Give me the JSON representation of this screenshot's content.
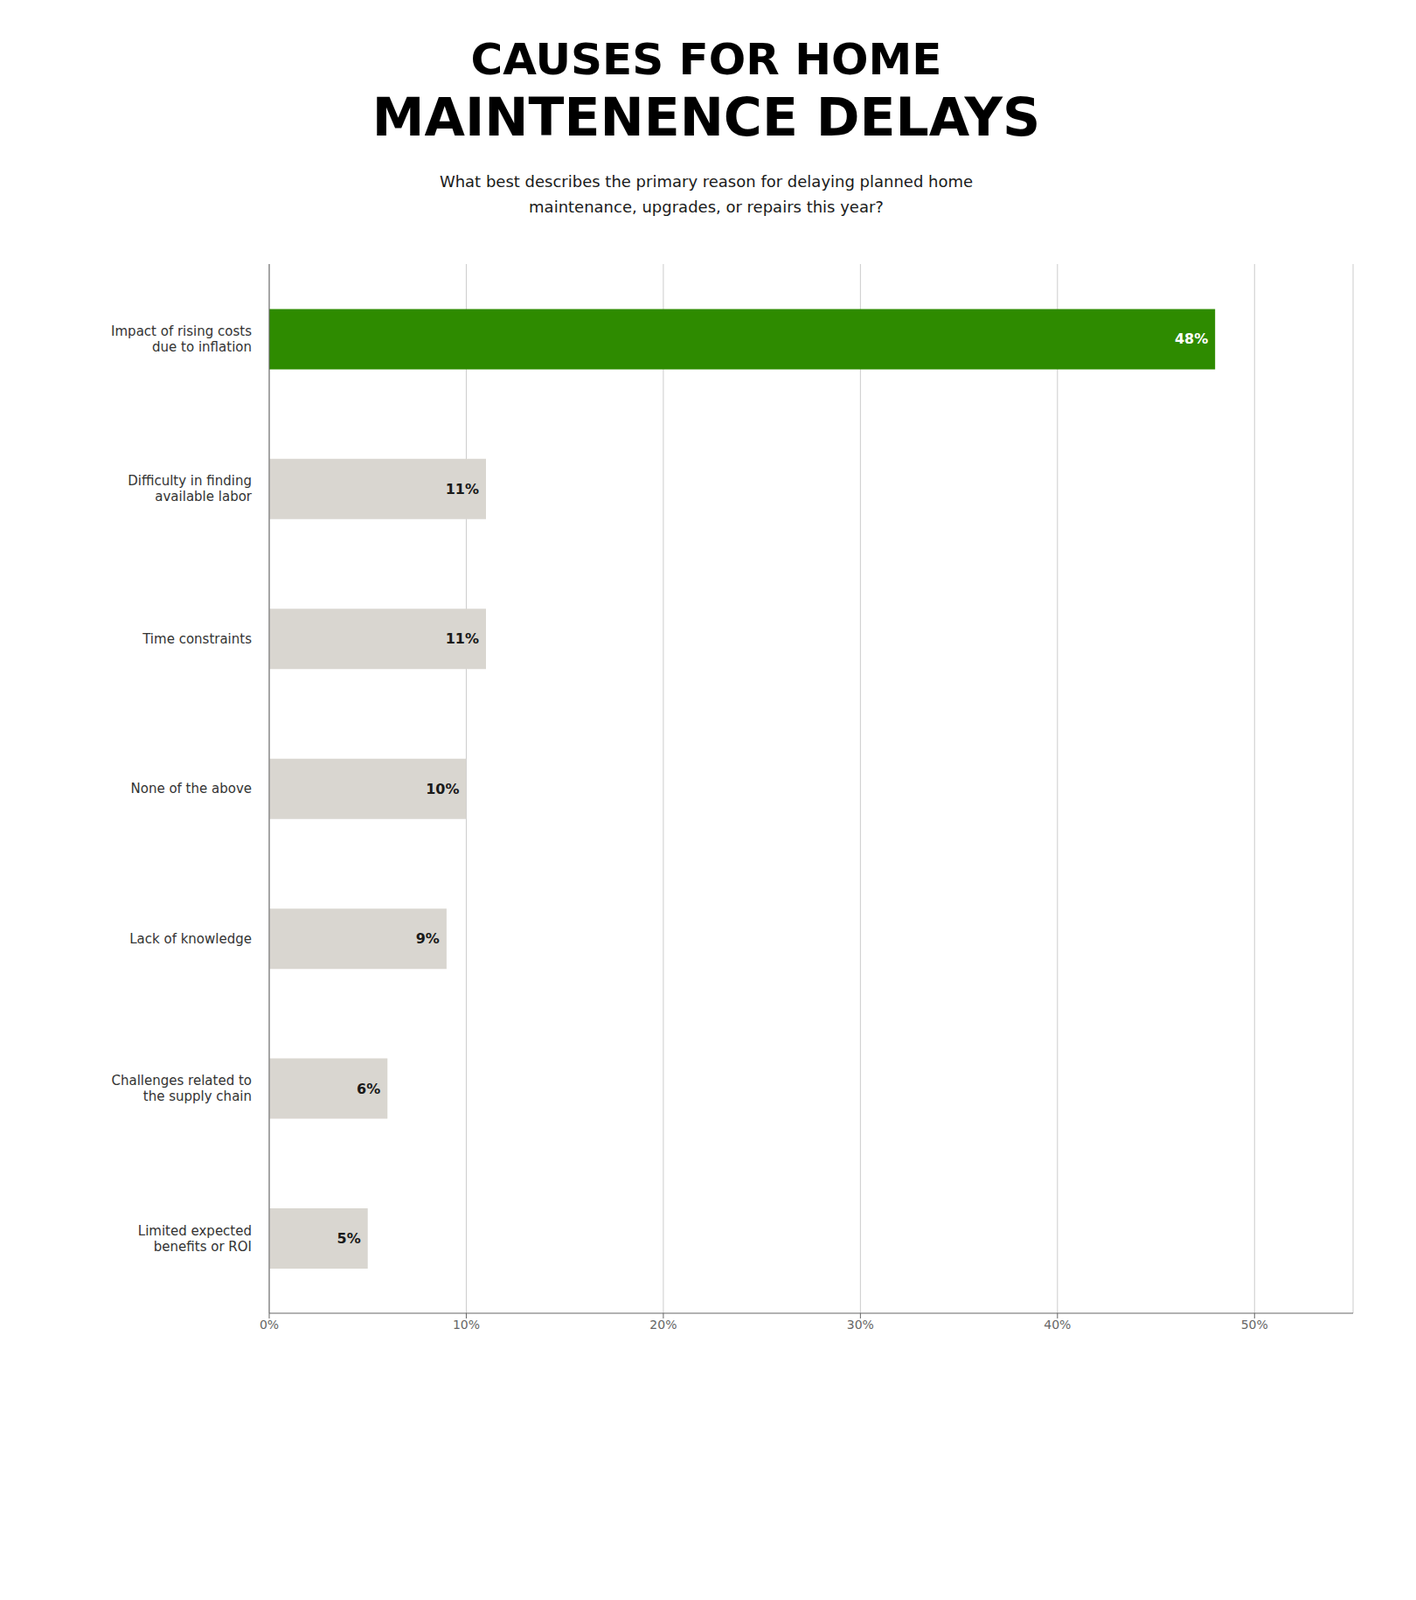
{
  "chart_data": {
    "type": "bar",
    "orientation": "horizontal",
    "title": "CAUSES FOR HOME\nMAINTENENCE DELAYS",
    "subtitle": "What best describes the primary reason for delaying planned home\nmaintenance, upgrades, or repairs this year?",
    "categories": [
      "Impact of rising costs\ndue to inflation",
      "Difficulty in finding\navailable labor",
      "Time constraints",
      "None of the above",
      "Lack of knowledge",
      "Challenges related to\nthe supply chain",
      "Limited expected\nbenefits or ROI"
    ],
    "values": [
      48,
      11,
      11,
      10,
      9,
      6,
      5
    ],
    "value_labels": [
      "48%",
      "11%",
      "11%",
      "10%",
      "9%",
      "6%",
      "5%"
    ],
    "colors": [
      "#2e8b00",
      "#d9d6d0",
      "#d9d6d0",
      "#d9d6d0",
      "#d9d6d0",
      "#d9d6d0",
      "#d9d6d0"
    ],
    "xlim": [
      0,
      55
    ],
    "xticks": [
      {
        "value": 0,
        "label": "0%"
      },
      {
        "value": 10,
        "label": "10%"
      },
      {
        "value": 20,
        "label": "20%"
      },
      {
        "value": 30,
        "label": "30%"
      },
      {
        "value": 40,
        "label": "40%"
      },
      {
        "value": 50,
        "label": "50%"
      }
    ],
    "grid": true,
    "data_labels": true
  }
}
